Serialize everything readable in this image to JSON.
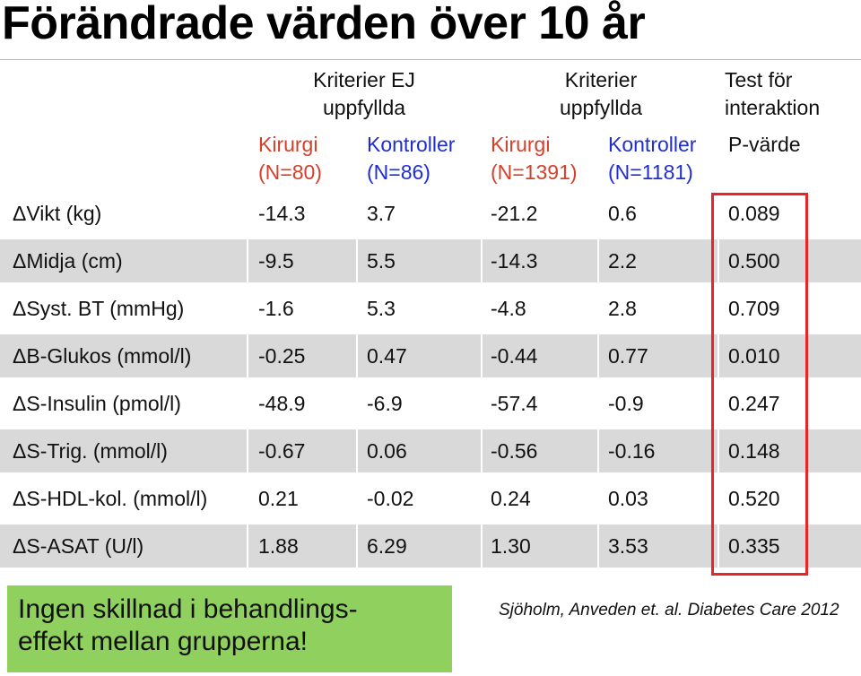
{
  "title": "Förändrade värden över 10 år",
  "groups": [
    {
      "line1": "Kriterier EJ",
      "line2": "uppfyllda"
    },
    {
      "line1": "Kriterier",
      "line2": "uppfyllda"
    },
    {
      "line1": "Test för",
      "line2": "interaktion"
    }
  ],
  "subheaders": [
    {
      "line1": "Kirurgi",
      "line2": "(N=80)"
    },
    {
      "line1": "Kontroller",
      "line2": "(N=86)"
    },
    {
      "line1": "Kirurgi",
      "line2": "(N=1391)"
    },
    {
      "line1": "Kontroller",
      "line2": "(N=1181)"
    },
    {
      "line1": "P-värde",
      "line2": ""
    }
  ],
  "colors": {
    "kirurgi": "#d4402a",
    "kontroller": "#1f2ed0",
    "highlight_box": "#e8262a",
    "note_bg": "#8fd05f",
    "row_shade": "#d9d9d9"
  },
  "rows": [
    {
      "label": "ΔVikt (kg)",
      "values": [
        "-14.3",
        "3.7",
        "-21.2",
        "0.6",
        "0.089"
      ]
    },
    {
      "label": "ΔMidja (cm)",
      "values": [
        "-9.5",
        "5.5",
        "-14.3",
        "2.2",
        "0.500"
      ]
    },
    {
      "label": "ΔSyst. BT (mmHg)",
      "values": [
        "-1.6",
        "5.3",
        "-4.8",
        "2.8",
        "0.709"
      ]
    },
    {
      "label": "ΔB-Glukos (mmol/l)",
      "values": [
        "-0.25",
        "0.47",
        "-0.44",
        "0.77",
        "0.010"
      ]
    },
    {
      "label": "ΔS-Insulin (pmol/l)",
      "values": [
        "-48.9",
        "-6.9",
        "-57.4",
        "-0.9",
        "0.247"
      ]
    },
    {
      "label": "ΔS-Trig. (mmol/l)",
      "values": [
        "-0.67",
        "0.06",
        "-0.56",
        "-0.16",
        "0.148"
      ]
    },
    {
      "label": "ΔS-HDL-kol. (mmol/l)",
      "values": [
        "0.21",
        "-0.02",
        "0.24",
        "0.03",
        "0.520"
      ]
    },
    {
      "label": "ΔS-ASAT (U/l)",
      "values": [
        "1.88",
        "6.29",
        "1.30",
        "3.53",
        "0.335"
      ]
    }
  ],
  "note": {
    "line1": "Ingen skillnad i behandlings-",
    "line2": "effekt mellan grupperna!"
  },
  "citation": "Sjöholm, Anveden et. al. Diabetes Care 2012"
}
